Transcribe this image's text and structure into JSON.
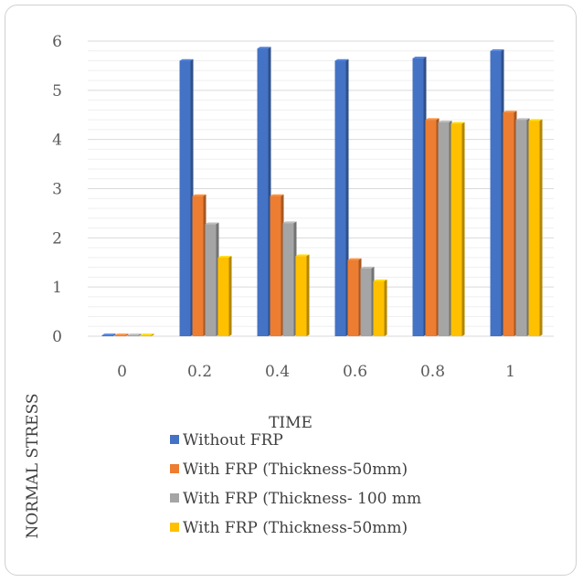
{
  "chart_data": {
    "type": "bar",
    "title": "",
    "xlabel": "TIME",
    "ylabel": "NORMAL STRESS",
    "categories": [
      "0",
      "0.2",
      "0.4",
      "0.6",
      "0.8",
      "1"
    ],
    "ylim": [
      0,
      6
    ],
    "yticks": [
      "0",
      "1",
      "2",
      "3",
      "4",
      "5",
      "6"
    ],
    "grid": true,
    "legend_position": "bottom",
    "series": [
      {
        "name": "Without FRP",
        "color": "#4472C4",
        "values": [
          0.02,
          5.6,
          5.85,
          5.6,
          5.65,
          5.8
        ]
      },
      {
        "name": "With FRP  (Thickness-50mm)",
        "color": "#ED7D31",
        "values": [
          0.02,
          2.85,
          2.85,
          1.55,
          4.4,
          4.55
        ]
      },
      {
        "name": "With FRP  (Thickness- 100 mm",
        "color": "#A5A5A5",
        "values": [
          0.02,
          2.28,
          2.3,
          1.38,
          4.35,
          4.4
        ]
      },
      {
        "name": "With FRP  (Thickness-50mm)",
        "color": "#FFC000",
        "values": [
          0.02,
          1.6,
          1.63,
          1.12,
          4.32,
          4.38
        ]
      }
    ]
  }
}
